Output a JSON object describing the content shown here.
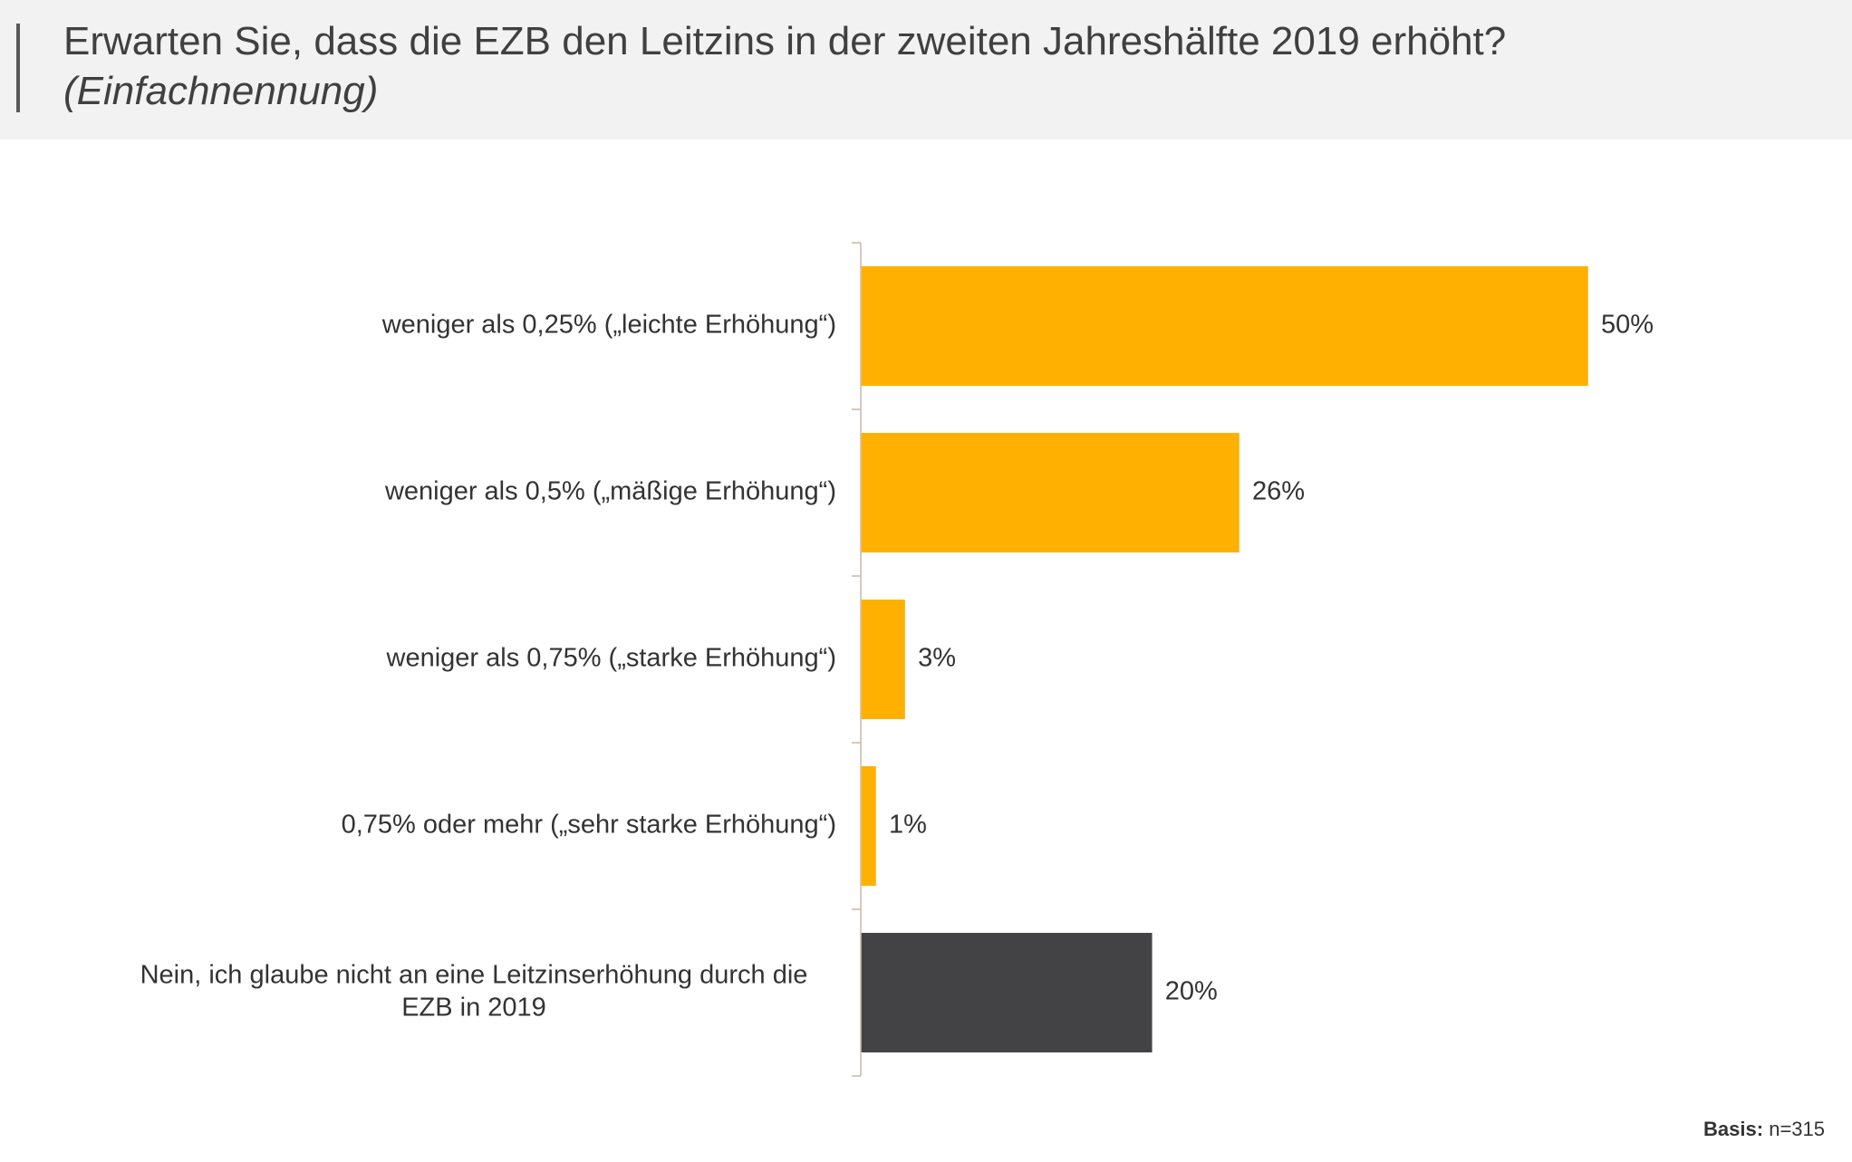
{
  "header": {
    "title": "Erwarten Sie, dass die EZB den Leitzins in der zweiten Jahreshälfte 2019 erhöht?",
    "subtitle": "(Einfachnennung)"
  },
  "footnote": {
    "label": "Basis:",
    "value": "n=315"
  },
  "chart_data": {
    "type": "bar",
    "orientation": "horizontal",
    "title": "Erwarten Sie, dass die EZB den Leitzins in der zweiten Jahreshälfte 2019 erhöht?",
    "subtitle": "(Einfachnennung)",
    "unit": "%",
    "categories": [
      "weniger als 0,25% („leichte Erhöhung“)",
      "weniger als 0,5% („mäßige Erhöhung“)",
      "weniger als 0,75% („starke Erhöhung“)",
      "0,75% oder mehr („sehr starke Erhöhung“)",
      "Nein, ich glaube nicht an eine Leitzinserhöhung durch die EZB in 2019"
    ],
    "category_lines": [
      [
        "weniger als 0,25% („leichte Erhöhung“)"
      ],
      [
        "weniger als 0,5% („mäßige Erhöhung“)"
      ],
      [
        "weniger als 0,75% („starke Erhöhung“)"
      ],
      [
        "0,75% oder mehr („sehr starke Erhöhung“)"
      ],
      [
        "Nein, ich glaube nicht an eine Leitzinserhöhung durch die",
        "EZB in 2019"
      ]
    ],
    "values": [
      50,
      26,
      3,
      1,
      20
    ],
    "value_labels": [
      "50%",
      "26%",
      "3%",
      "1%",
      "20%"
    ],
    "bar_colors": [
      "#ffb000",
      "#ffb000",
      "#ffb000",
      "#ffb000",
      "#434345"
    ],
    "xlim": [
      0,
      50
    ],
    "grid": false,
    "legend": "none"
  }
}
